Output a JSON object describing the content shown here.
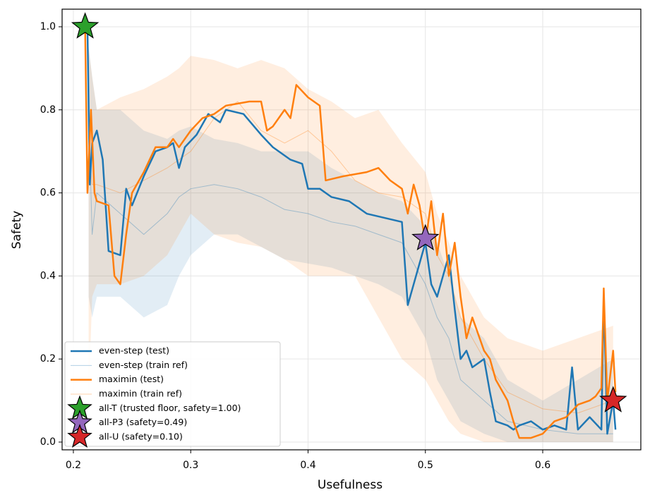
{
  "chart_data": {
    "type": "line",
    "xlabel": "Usefulness",
    "ylabel": "Safety",
    "xlim": [
      0.1904,
      0.6836
    ],
    "ylim": [
      -0.0187,
      1.0424
    ],
    "xticks": [
      0.2,
      0.3,
      0.4,
      0.5,
      0.6
    ],
    "yticks": [
      {
        "value": 0.0,
        "label": "0.0"
      },
      0.2,
      0.4,
      0.6,
      0.8,
      {
        "value": 1.0,
        "label": "1.0"
      }
    ],
    "grid": true,
    "legend": "lower left",
    "series": [
      {
        "name": "even-step (test)",
        "color": "#1f77b4",
        "width": 2.5,
        "x": [
          0.212,
          0.214,
          0.216,
          0.22,
          0.225,
          0.23,
          0.24,
          0.245,
          0.25,
          0.26,
          0.27,
          0.28,
          0.285,
          0.29,
          0.295,
          0.305,
          0.315,
          0.325,
          0.33,
          0.345,
          0.36,
          0.37,
          0.385,
          0.395,
          0.4,
          0.41,
          0.42,
          0.435,
          0.45,
          0.465,
          0.48,
          0.485,
          0.49,
          0.5,
          0.505,
          0.51,
          0.52,
          0.525,
          0.53,
          0.535,
          0.54,
          0.55,
          0.555,
          0.56,
          0.57,
          0.575,
          0.58,
          0.59,
          0.6,
          0.61,
          0.62,
          0.625,
          0.63,
          0.64,
          0.65,
          0.652,
          0.655,
          0.66,
          0.662
        ],
        "values": [
          1.0,
          0.62,
          0.72,
          0.75,
          0.68,
          0.46,
          0.45,
          0.61,
          0.57,
          0.64,
          0.7,
          0.71,
          0.72,
          0.66,
          0.71,
          0.74,
          0.79,
          0.77,
          0.8,
          0.79,
          0.74,
          0.71,
          0.68,
          0.67,
          0.61,
          0.61,
          0.59,
          0.58,
          0.55,
          0.54,
          0.53,
          0.33,
          0.38,
          0.48,
          0.38,
          0.35,
          0.45,
          0.32,
          0.2,
          0.22,
          0.18,
          0.2,
          0.12,
          0.05,
          0.04,
          0.03,
          0.04,
          0.05,
          0.03,
          0.04,
          0.03,
          0.18,
          0.03,
          0.06,
          0.03,
          0.35,
          0.02,
          0.1,
          0.03
        ]
      },
      {
        "name": "even-step (train ref)",
        "color": "#1f77b4",
        "width": 1,
        "opacity": 0.35,
        "x": [
          0.213,
          0.216,
          0.22,
          0.24,
          0.26,
          0.28,
          0.29,
          0.3,
          0.32,
          0.34,
          0.36,
          0.38,
          0.4,
          0.42,
          0.44,
          0.46,
          0.48,
          0.5,
          0.51,
          0.52,
          0.53,
          0.55,
          0.57,
          0.6,
          0.63,
          0.66
        ],
        "values": [
          0.8,
          0.5,
          0.6,
          0.55,
          0.5,
          0.55,
          0.59,
          0.61,
          0.62,
          0.61,
          0.59,
          0.56,
          0.55,
          0.53,
          0.52,
          0.5,
          0.48,
          0.38,
          0.3,
          0.25,
          0.15,
          0.1,
          0.05,
          0.03,
          0.02,
          0.02
        ],
        "upper": [
          0.95,
          0.88,
          0.8,
          0.8,
          0.75,
          0.73,
          0.75,
          0.76,
          0.73,
          0.72,
          0.7,
          0.7,
          0.7,
          0.66,
          0.63,
          0.6,
          0.58,
          0.52,
          0.48,
          0.4,
          0.3,
          0.25,
          0.15,
          0.1,
          0.15,
          0.2
        ],
        "lower": [
          0.35,
          0.3,
          0.35,
          0.35,
          0.3,
          0.33,
          0.4,
          0.45,
          0.5,
          0.5,
          0.47,
          0.44,
          0.43,
          0.42,
          0.4,
          0.38,
          0.35,
          0.25,
          0.15,
          0.1,
          0.05,
          0.02,
          0.0,
          0.0,
          0.0,
          0.0
        ]
      },
      {
        "name": "maximin (test)",
        "color": "#ff7f0e",
        "width": 2.5,
        "x": [
          0.21,
          0.212,
          0.215,
          0.218,
          0.22,
          0.23,
          0.235,
          0.24,
          0.245,
          0.25,
          0.26,
          0.27,
          0.28,
          0.285,
          0.29,
          0.3,
          0.31,
          0.32,
          0.33,
          0.35,
          0.36,
          0.365,
          0.37,
          0.38,
          0.385,
          0.39,
          0.4,
          0.41,
          0.415,
          0.43,
          0.45,
          0.46,
          0.47,
          0.48,
          0.485,
          0.49,
          0.495,
          0.5,
          0.505,
          0.51,
          0.515,
          0.52,
          0.525,
          0.53,
          0.535,
          0.54,
          0.55,
          0.555,
          0.56,
          0.57,
          0.575,
          0.58,
          0.59,
          0.6,
          0.61,
          0.62,
          0.63,
          0.64,
          0.645,
          0.65,
          0.652,
          0.655,
          0.66,
          0.662
        ],
        "values": [
          1.0,
          0.6,
          0.8,
          0.6,
          0.58,
          0.57,
          0.4,
          0.38,
          0.5,
          0.6,
          0.65,
          0.71,
          0.71,
          0.73,
          0.71,
          0.75,
          0.78,
          0.79,
          0.81,
          0.82,
          0.82,
          0.75,
          0.76,
          0.8,
          0.78,
          0.86,
          0.83,
          0.81,
          0.63,
          0.64,
          0.65,
          0.66,
          0.63,
          0.61,
          0.55,
          0.62,
          0.57,
          0.48,
          0.58,
          0.45,
          0.55,
          0.4,
          0.48,
          0.35,
          0.25,
          0.3,
          0.22,
          0.2,
          0.15,
          0.1,
          0.05,
          0.01,
          0.01,
          0.02,
          0.05,
          0.06,
          0.09,
          0.1,
          0.11,
          0.13,
          0.37,
          0.1,
          0.22,
          0.12
        ]
      },
      {
        "name": "maximin (train ref)",
        "color": "#ff7f0e",
        "width": 1,
        "opacity": 0.35,
        "x": [
          0.213,
          0.216,
          0.22,
          0.24,
          0.26,
          0.28,
          0.29,
          0.3,
          0.32,
          0.34,
          0.36,
          0.38,
          0.4,
          0.42,
          0.44,
          0.46,
          0.48,
          0.5,
          0.51,
          0.52,
          0.53,
          0.55,
          0.57,
          0.6,
          0.63,
          0.66
        ],
        "values": [
          0.7,
          0.62,
          0.62,
          0.6,
          0.63,
          0.66,
          0.68,
          0.7,
          0.78,
          0.82,
          0.75,
          0.72,
          0.75,
          0.7,
          0.63,
          0.6,
          0.59,
          0.55,
          0.45,
          0.4,
          0.3,
          0.2,
          0.12,
          0.08,
          0.07,
          0.1
        ],
        "upper": [
          0.95,
          0.88,
          0.8,
          0.83,
          0.85,
          0.88,
          0.9,
          0.93,
          0.92,
          0.9,
          0.92,
          0.9,
          0.85,
          0.82,
          0.78,
          0.8,
          0.72,
          0.65,
          0.55,
          0.48,
          0.4,
          0.3,
          0.25,
          0.22,
          0.25,
          0.28
        ],
        "lower": [
          0.1,
          0.35,
          0.38,
          0.38,
          0.4,
          0.45,
          0.5,
          0.55,
          0.5,
          0.48,
          0.47,
          0.44,
          0.4,
          0.4,
          0.4,
          0.3,
          0.2,
          0.15,
          0.1,
          0.05,
          0.02,
          0.0,
          0.0,
          0.0,
          0.0,
          0.0
        ]
      }
    ],
    "markers": [
      {
        "name": "all-T (trusted floor, safety=1.00)",
        "color": "#2ca02c",
        "x": 0.21,
        "y": 1.0
      },
      {
        "name": "all-P3 (safety=0.49)",
        "color": "#9467bd",
        "x": 0.5,
        "y": 0.49
      },
      {
        "name": "all-U (safety=0.10)",
        "color": "#d62728",
        "x": 0.66,
        "y": 0.1
      }
    ]
  }
}
